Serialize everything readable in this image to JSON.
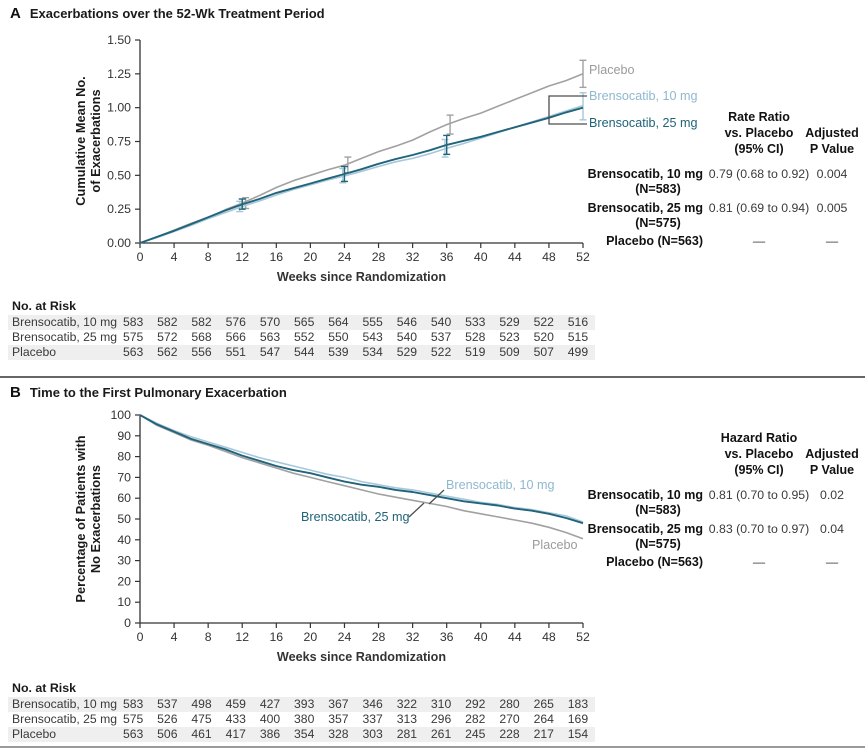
{
  "colors": {
    "placebo": "#a1a1a1",
    "brensocatib_10": "#a6c8d9",
    "brensocatib_25": "#21647b",
    "label_placebo": "#9b9b9b",
    "label_10": "#8fb8ce",
    "label_25": "#1f6378",
    "axis": "#333333",
    "zebra": "#efefef",
    "divider": "#666666"
  },
  "chart_data": [
    {
      "type": "line",
      "title": "Exacerbations over the 52-Wk Treatment Period",
      "xlabel": "Weeks since Randomization",
      "ylabel": "Cumulative Mean No.\nof Exacerbations",
      "xlim": [
        0,
        52
      ],
      "ylim": [
        0,
        1.5
      ],
      "x_ticks": [
        0,
        4,
        8,
        12,
        16,
        20,
        24,
        28,
        32,
        36,
        40,
        44,
        48,
        52
      ],
      "y_ticks": [
        "0.00",
        "0.25",
        "0.50",
        "0.75",
        "1.00",
        "1.25",
        "1.50"
      ],
      "grid": false,
      "legend_position": "inline-end-labels",
      "x": [
        0,
        2,
        4,
        6,
        8,
        10,
        12,
        14,
        16,
        18,
        20,
        22,
        24,
        26,
        28,
        30,
        32,
        34,
        36,
        38,
        40,
        42,
        44,
        46,
        48,
        50,
        52
      ],
      "series": [
        {
          "name": "Placebo",
          "color": "#a1a1a1",
          "width": 1.6,
          "values": [
            0,
            0.045,
            0.095,
            0.145,
            0.19,
            0.245,
            0.295,
            0.35,
            0.41,
            0.46,
            0.5,
            0.54,
            0.575,
            0.625,
            0.675,
            0.715,
            0.76,
            0.82,
            0.875,
            0.92,
            0.96,
            1.01,
            1.06,
            1.11,
            1.16,
            1.2,
            1.25
          ],
          "error_bars": [
            {
              "x": 12.4,
              "y": 0.295,
              "lo": 0.255,
              "hi": 0.335
            },
            {
              "x": 24.4,
              "y": 0.575,
              "lo": 0.52,
              "hi": 0.635
            },
            {
              "x": 36.4,
              "y": 0.875,
              "lo": 0.805,
              "hi": 0.945
            },
            {
              "x": 52,
              "y": 1.25,
              "lo": 1.15,
              "hi": 1.35
            }
          ]
        },
        {
          "name": "Brensocatib, 10 mg",
          "color": "#a6c8d9",
          "width": 1.6,
          "values": [
            0,
            0.04,
            0.085,
            0.13,
            0.18,
            0.225,
            0.27,
            0.31,
            0.355,
            0.395,
            0.43,
            0.465,
            0.495,
            0.53,
            0.565,
            0.6,
            0.625,
            0.66,
            0.7,
            0.735,
            0.775,
            0.815,
            0.855,
            0.895,
            0.935,
            0.975,
            1.015
          ],
          "error_bars": [
            {
              "x": 11.7,
              "y": 0.27,
              "lo": 0.232,
              "hi": 0.308
            },
            {
              "x": 23.8,
              "y": 0.495,
              "lo": 0.445,
              "hi": 0.55
            },
            {
              "x": 35.8,
              "y": 0.7,
              "lo": 0.635,
              "hi": 0.765
            },
            {
              "x": 52,
              "y": 1.01,
              "lo": 0.91,
              "hi": 1.11
            }
          ]
        },
        {
          "name": "Brensocatib, 25 mg",
          "color": "#21647b",
          "width": 1.9,
          "values": [
            0,
            0.045,
            0.09,
            0.14,
            0.19,
            0.24,
            0.285,
            0.325,
            0.37,
            0.405,
            0.44,
            0.475,
            0.51,
            0.545,
            0.585,
            0.62,
            0.65,
            0.685,
            0.725,
            0.755,
            0.785,
            0.82,
            0.855,
            0.89,
            0.925,
            0.965,
            1.0
          ],
          "error_bars": [
            {
              "x": 12,
              "y": 0.285,
              "lo": 0.25,
              "hi": 0.325
            },
            {
              "x": 24,
              "y": 0.51,
              "lo": 0.455,
              "hi": 0.565
            },
            {
              "x": 36,
              "y": 0.725,
              "lo": 0.655,
              "hi": 0.795
            }
          ]
        }
      ]
    },
    {
      "type": "line",
      "title": "Time to the First Pulmonary Exacerbation",
      "xlabel": "Weeks since Randomization",
      "ylabel": "Percentage of Patients with\nNo Exacerbations",
      "xlim": [
        0,
        52
      ],
      "ylim": [
        0,
        100
      ],
      "x_ticks": [
        0,
        4,
        8,
        12,
        16,
        20,
        24,
        28,
        32,
        36,
        40,
        44,
        48,
        52
      ],
      "y_ticks": [
        "0",
        "10",
        "20",
        "30",
        "40",
        "50",
        "60",
        "70",
        "80",
        "90",
        "100"
      ],
      "grid": false,
      "legend_position": "inline-labels",
      "x": [
        0,
        2,
        4,
        6,
        8,
        10,
        12,
        14,
        16,
        18,
        20,
        22,
        24,
        26,
        28,
        30,
        32,
        34,
        36,
        38,
        40,
        42,
        44,
        46,
        48,
        50,
        52
      ],
      "series": [
        {
          "name": "Placebo",
          "color": "#a1a1a1",
          "width": 1.6,
          "values": [
            100,
            95,
            91.5,
            88,
            85.5,
            82.5,
            79.5,
            77,
            74.5,
            72,
            70,
            68,
            66,
            64,
            62,
            60.5,
            59,
            57.5,
            56,
            54,
            52.5,
            51,
            49.5,
            48,
            46,
            43.5,
            40.5
          ]
        },
        {
          "name": "Brensocatib, 10 mg",
          "color": "#a6c8d9",
          "width": 1.6,
          "values": [
            100,
            96,
            92.5,
            89.5,
            87,
            84.5,
            82,
            79.5,
            77.5,
            75.5,
            73.5,
            71.5,
            70,
            68,
            66.5,
            65,
            64,
            62.5,
            61,
            59.5,
            58,
            57,
            55.5,
            54.5,
            53,
            51.5,
            48.5
          ]
        },
        {
          "name": "Brensocatib, 25 mg",
          "color": "#21647b",
          "width": 1.9,
          "values": [
            100,
            95.5,
            92,
            88.5,
            86,
            83.5,
            80.5,
            78,
            75.5,
            73.5,
            72,
            70,
            68,
            66.5,
            65.5,
            64,
            63,
            61.5,
            60,
            58.5,
            57.5,
            56.5,
            55,
            54,
            52.5,
            50.5,
            48
          ]
        }
      ]
    }
  ],
  "panelA": {
    "letter": "A",
    "title": "Exacerbations over the 52-Wk Treatment Period",
    "stats": {
      "col1_header": "Rate Ratio\nvs. Placebo\n(95% CI)",
      "col2_header": "Adjusted\nP Value",
      "rows": [
        {
          "name": "Brensocatib, 10 mg",
          "n": "(N=583)",
          "value": "0.79 (0.68 to 0.92)",
          "p": "0.004"
        },
        {
          "name": "Brensocatib, 25 mg",
          "n": "(N=575)",
          "value": "0.81 (0.69 to 0.94)",
          "p": "0.005"
        },
        {
          "name": "Placebo (N=563)",
          "n": "",
          "value": "—",
          "p": "—"
        }
      ]
    },
    "risk_table": {
      "title": "No. at Risk",
      "rows": [
        {
          "label": "Brensocatib, 10 mg",
          "values": [
            583,
            582,
            582,
            576,
            570,
            565,
            564,
            555,
            546,
            540,
            533,
            529,
            522,
            516
          ]
        },
        {
          "label": "Brensocatib, 25 mg",
          "values": [
            575,
            572,
            568,
            566,
            563,
            552,
            550,
            543,
            540,
            537,
            528,
            523,
            520,
            515
          ]
        },
        {
          "label": "Placebo",
          "values": [
            563,
            562,
            556,
            551,
            547,
            544,
            539,
            534,
            529,
            522,
            519,
            509,
            507,
            499
          ]
        }
      ]
    }
  },
  "panelB": {
    "letter": "B",
    "title": "Time to the First Pulmonary Exacerbation",
    "stats": {
      "col1_header": "Hazard Ratio\nvs. Placebo\n(95% CI)",
      "col2_header": "Adjusted\nP Value",
      "rows": [
        {
          "name": "Brensocatib, 10 mg",
          "n": "(N=583)",
          "value": "0.81 (0.70 to 0.95)",
          "p": "0.02"
        },
        {
          "name": "Brensocatib, 25 mg",
          "n": "(N=575)",
          "value": "0.83 (0.70 to 0.97)",
          "p": "0.04"
        },
        {
          "name": "Placebo (N=563)",
          "n": "",
          "value": "—",
          "p": "—"
        }
      ]
    },
    "risk_table": {
      "title": "No. at Risk",
      "rows": [
        {
          "label": "Brensocatib, 10 mg",
          "values": [
            583,
            537,
            498,
            459,
            427,
            393,
            367,
            346,
            322,
            310,
            292,
            280,
            265,
            183
          ]
        },
        {
          "label": "Brensocatib, 25 mg",
          "values": [
            575,
            526,
            475,
            433,
            400,
            380,
            357,
            337,
            313,
            296,
            282,
            270,
            264,
            169
          ]
        },
        {
          "label": "Placebo",
          "values": [
            563,
            506,
            461,
            417,
            386,
            354,
            328,
            303,
            281,
            261,
            245,
            228,
            217,
            154
          ]
        }
      ]
    }
  }
}
